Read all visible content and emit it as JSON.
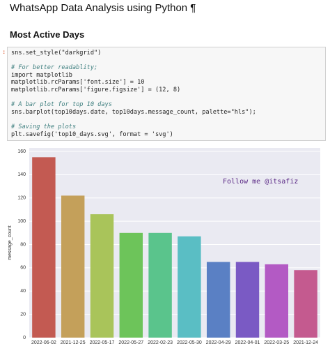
{
  "header": {
    "title": "WhatsApp Data Analysis using Python ¶",
    "section": "Most Active Days"
  },
  "cell": {
    "prompt": ":",
    "code": [
      [
        "sns.set_style(\"darkgrid\")"
      ],
      [
        "# For better readablity;",
        "import matplotlib",
        "matplotlib.rcParams['font.size'] = 10",
        "matplotlib.rcParams['figure.figsize'] = (12, 8)"
      ],
      [
        "# A bar plot for top 10 days",
        "sns.barplot(top10days.date, top10days.message_count, palette=\"hls\");"
      ],
      [
        "# Saving the plots",
        "plt.savefig('top10_days.svg', format = 'svg')"
      ]
    ]
  },
  "chart_data": {
    "type": "bar",
    "y_label": "message_count",
    "annotation": "Follow me @itsafiz",
    "categories": [
      "2022-06-02",
      "2021-12-25",
      "2022-05-17",
      "2022-05-27",
      "2022-02-23",
      "2022-05-30",
      "2022-04-29",
      "2022-04-01",
      "2022-03-25",
      "2021-12-24"
    ],
    "values": [
      155,
      122,
      106,
      90,
      90,
      87,
      65,
      65,
      63,
      58
    ],
    "colors": [
      "#c35a52",
      "#c4a05a",
      "#a9c45a",
      "#6dc45a",
      "#5ac48c",
      "#5abec4",
      "#5a80c4",
      "#7a5ac4",
      "#b35ac4",
      "#c45a8f"
    ],
    "ylim": [
      0,
      163
    ],
    "yticks": [
      0,
      20,
      40,
      60,
      80,
      100,
      120,
      140,
      160
    ],
    "grid": true
  }
}
